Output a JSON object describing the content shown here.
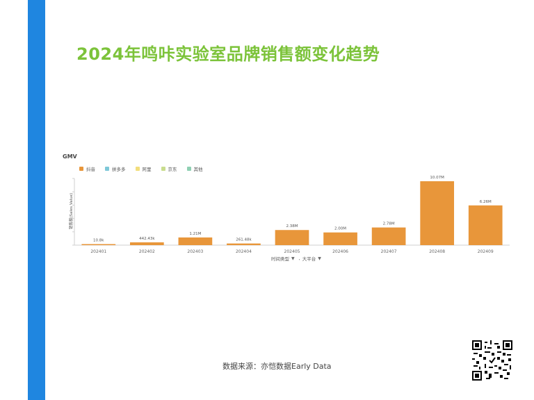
{
  "title": "2024年鸣咔实验室品牌销售额变化趋势",
  "chart_label": "GMV",
  "legend": [
    {
      "name": "抖音",
      "color": "#e8963a"
    },
    {
      "name": "拼多多",
      "color": "#7ec8d8"
    },
    {
      "name": "阿里",
      "color": "#f2de7c"
    },
    {
      "name": "京东",
      "color": "#c9dd8e"
    },
    {
      "name": "其他",
      "color": "#8fd0b3"
    }
  ],
  "y_axis_title": "销售额(Sales Value)",
  "filters": [
    {
      "label": "时间类型"
    },
    {
      "label": "大平台"
    }
  ],
  "chart_data": {
    "type": "bar",
    "categories": [
      "202401",
      "202402",
      "202403",
      "202404",
      "202405",
      "202406",
      "202407",
      "202408",
      "202409"
    ],
    "series": [
      {
        "name": "抖音",
        "values": [
          10800,
          442430,
          1210000,
          261480,
          2380000,
          2000000,
          2780000,
          10070000,
          6260000
        ],
        "labels": [
          "10.8k",
          "442.43k",
          "1.21M",
          "261.48k",
          "2.38M",
          "2.00M",
          "2.78M",
          "10.07M",
          "6.26M"
        ]
      }
    ],
    "ylim": [
      0,
      10500000
    ],
    "xlabel": "",
    "ylabel": "销售额(Sales Value)",
    "grid": false,
    "legend_position": "top-left"
  },
  "source": "数据来源：亦恺数据Early Data",
  "colors": {
    "accent_bar": "#1f86e0",
    "title": "#7cc33a",
    "bar": "#e8963a"
  }
}
